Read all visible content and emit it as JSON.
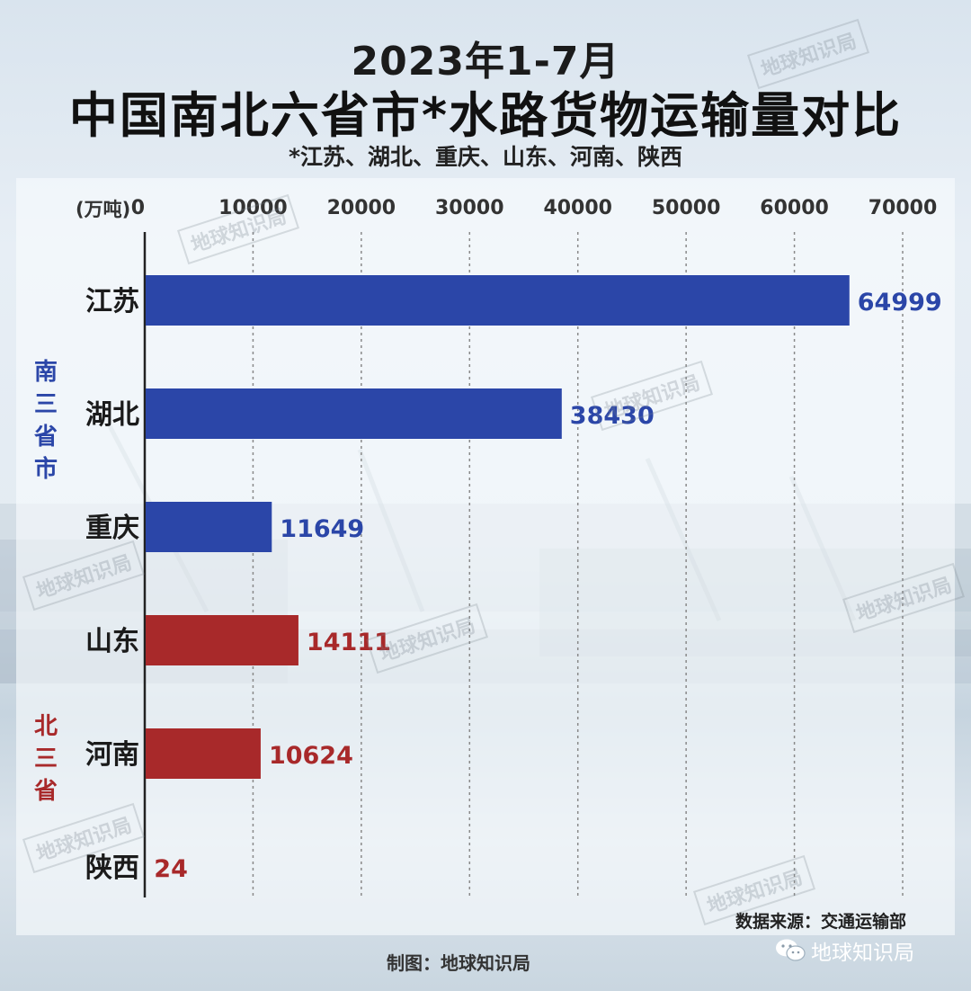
{
  "title_line1": "2023年1-7月",
  "title_line2": "中国南北六省市*水路货物运输量对比",
  "subtitle": "*江苏、湖北、重庆、山东、河南、陕西",
  "unit": "(万吨)",
  "watermark": "地球知识局",
  "source": "数据来源：交通运输部",
  "credit": "制图：地球知识局",
  "brand": "地球知识局",
  "brand_icon": "wechat-icon",
  "colors": {
    "south": "#2b46a8",
    "north": "#a8292a",
    "south_text": "#2b46a8",
    "north_text": "#a8292a"
  },
  "groups": [
    {
      "label": "南三省市",
      "color": "#2b46a8"
    },
    {
      "label": "北三省",
      "color": "#a8292a"
    }
  ],
  "chart_data": {
    "type": "bar",
    "orientation": "horizontal",
    "categories": [
      "江苏",
      "湖北",
      "重庆",
      "山东",
      "河南",
      "陕西"
    ],
    "values": [
      64999,
      38430,
      11649,
      14111,
      10624,
      24
    ],
    "group_of_category": [
      0,
      0,
      0,
      1,
      1,
      1
    ],
    "x_ticks": [
      0,
      10000,
      20000,
      30000,
      40000,
      50000,
      60000,
      70000
    ],
    "xlim": [
      0,
      70000
    ],
    "grid": true,
    "title": "中国南北六省市*水路货物运输量对比"
  }
}
